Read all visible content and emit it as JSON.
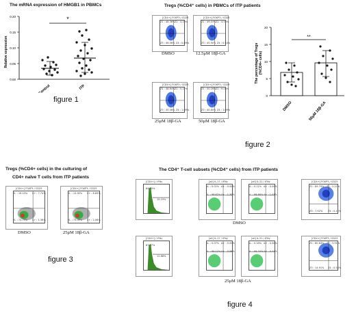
{
  "fig1": {
    "title": "The mRNA expression of HMGB1  in PBMCs",
    "ylabel": "Relative expression",
    "star": "*",
    "caption": "figure 1",
    "colors": {
      "points": "#1a1a1a"
    }
  },
  "fig2": {
    "title": "Tregs (%CD4⁺ cells) in PBMCs of ITP patients",
    "conditions": [
      "DMSO",
      "12.5μM 18β-GA",
      "25μM 18β-GA",
      "50μM 18β-GA"
    ],
    "panel_header": "[CD4+] FOXP3 / CD25",
    "quads": [
      [
        "Z1 : 48.36%",
        "Z2 : 4.19%",
        "Z3 : 46.56%",
        "Z4 : 0.89%"
      ],
      [
        "Z1 : 49.03%",
        "Z2 : 4.53%",
        "Z3 : 45.90%",
        "Z4 : 0.54%"
      ],
      [
        "Z1 : 48.64%",
        "Z2 : 5.22%",
        "Z3 : 45.08%",
        "Z4 : 1.09%"
      ],
      [
        "Z1 : 50.16%",
        "Z2 : 9.04%",
        "Z3 : 40.80%",
        "Z4 : 1.09%"
      ]
    ],
    "xaxis": "FOXP3",
    "yaxis": "CD25",
    "bar_ylabel": "The percentage of Tregs (%CD4+ cells)",
    "star": "**",
    "caption": "figure 2"
  },
  "fig3": {
    "title_line1": "Tregs (%CD4+ cells) in the culturing of",
    "title_line2": "CD4+ naïve T cells  from ITP patients",
    "conditions": [
      "DMSO",
      "25μM 18β-GA"
    ],
    "panel_header": "[CD4+] FOXP3 / CD25",
    "quads": [
      [
        "S- : 16.13%",
        "S+ : 7.74%",
        "S- : 74.75%",
        "S+ : 1.38%"
      ],
      [
        "S- : 15.95%",
        "S+ : 8.89%",
        "S- : 73.09%",
        "S+ : 2.06%"
      ]
    ],
    "xaxis": "FOXP3",
    "yaxis": "CD25",
    "caption": "figure 3"
  },
  "fig4": {
    "title": "The CD4⁺ T-cell subsets (%CD4⁺ cells) from ITP patients",
    "conditions": [
      "DMSO",
      "25μM 18β-GA"
    ],
    "hist_header": "[CD4+] / IFNγ",
    "hist_labels": [
      [
        "84.80%",
        "15.19%"
      ],
      [
        "87.07%",
        "12.68%"
      ]
    ],
    "il17_header": "[all] IL-17 / IFNγ",
    "il22_header": "[all] IL-22 / IFNγ",
    "treg_header": "[CD4+] FOXP3 / CD25",
    "row_quads": [
      [
        [
          "A- : 0.02%",
          "A+ : 0.00%",
          "A- : 98.62%",
          "A+ : 1.35%"
        ],
        [
          "A- : 0.11%",
          "A+ : 0.00%",
          "A- : 98.86%",
          "A+ : 1.03%"
        ],
        [
          "Z1 : 89.79%",
          "Z2 : 2.21%",
          "Z3 : 7.92%",
          "Z4 : 0.12%"
        ]
      ],
      [
        [
          "A- : 0.07%",
          "A+ : 0.00%",
          "A- : 99.12%",
          "A+ : 0.56%"
        ],
        [
          "A- : 0.18%",
          "A+ : 0.00%",
          "A- : 99.40%",
          "A+ : 0.42%"
        ],
        [
          "Z1 : 80.64%",
          "Z2 : 3.91%",
          "Z3 : 14.91%",
          "Z4 : 0.54%"
        ]
      ]
    ],
    "x_labels": [
      "IFNγ",
      "IL-17",
      "IL-22",
      "FOXP3"
    ],
    "caption": "figure 4"
  }
}
